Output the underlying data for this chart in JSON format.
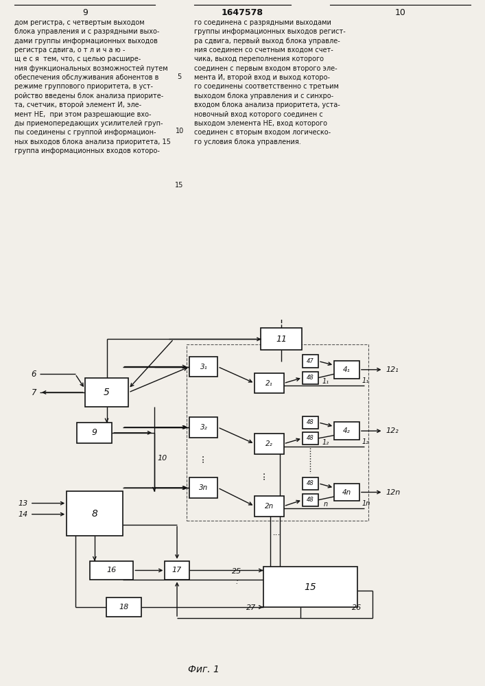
{
  "bg_color": "#f2efe9",
  "text_color": "#111111",
  "page_left": "9",
  "page_center": "1647578",
  "page_right": "10",
  "fig_caption": "Фиг. 1",
  "left_col_text": "дом регистра, с четвертым выходом\nблока управления и с разрядными выхо-\nдами группы информационных выходов\nрегистра сдвига, о т л и ч а ю -\nщ е с я  тем, что, с целью расшире-\nния функциональных возможностей путем\nобеспечения обслуживания абонентов в\nрежиме группового приоритета, в уст-\nройство введены блок анализа приорите-\nта, счетчик, второй элемент И, эле-\nмент НЕ,  при этом разрешающие вхо-\nды приемопередающих усилителей груп-\nпы соединены с группой информацион-\nных выходов блока анализа приоритета, 15\nгруппа информационных входов которо-",
  "right_col_text": "го соединена с разрядными выходами\nгруппы информационных выходов регист-\nра сдвига, первый выход блока управле-\nния соединен со счетным входом счет-\nчика, выход переполнения которого\nсоединен с первым входом второго эле-\nмента И, второй вход и выход которо-\nго соединены соответственно с третьим\nвыходом блока управления и с синхро-\nвходом блока анализа приоритета, уста-\nновочный вход которого соединен с\nвыходом элемента НЕ, вход которого\nсоединен с вторым входом логическо-\nго условия блока управления."
}
